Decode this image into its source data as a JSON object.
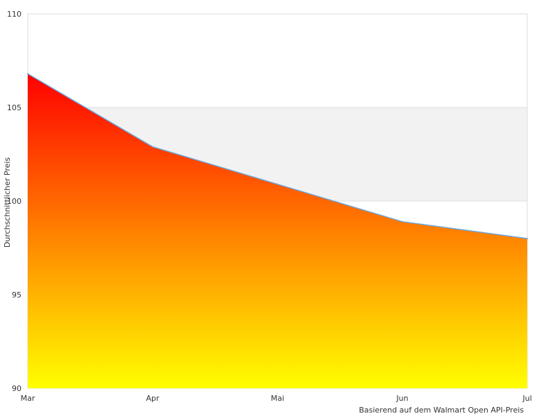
{
  "chart_data": {
    "type": "area",
    "categories": [
      "Mar",
      "Apr",
      "Mai",
      "Jun",
      "Jul"
    ],
    "series": [
      {
        "values": [
          106.8,
          102.9,
          100.9,
          98.9,
          98.0
        ]
      }
    ],
    "ylabel": "Durchschnittlicher Preis",
    "ylim": [
      90,
      110
    ],
    "yticks": [
      90,
      95,
      100,
      105,
      110
    ],
    "grid": true,
    "note": "Basierend auf dem Walmart Open API-Preis",
    "colors": {
      "gradient_top": "#ff0000",
      "gradient_bottom": "#ffff00",
      "line": "#6aa9e0",
      "band_shaded": "#f2f2f2",
      "band_plain": "#ffffff",
      "grid": "#dddddd"
    }
  }
}
